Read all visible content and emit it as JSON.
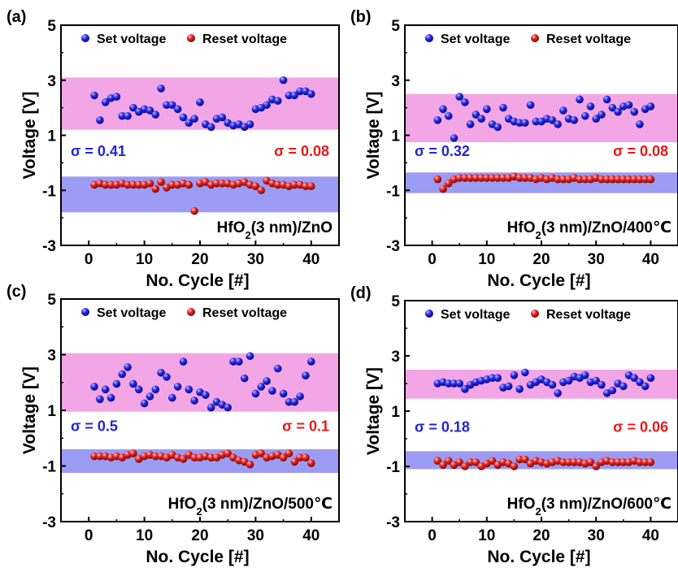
{
  "colors": {
    "set": "#1f1fe0",
    "reset": "#e01f1f",
    "set_band": "#f3a6e6",
    "reset_band": "#9c9cf4",
    "set_sigma_text": "#2424d6",
    "reset_sigma_text": "#e61a1a"
  },
  "chart_data": [
    {
      "type": "scatter",
      "panel_label": "(a)",
      "xlabel": "No. Cycle [#]",
      "ylabel": "Voltage [V]",
      "xlim": [
        -5,
        45
      ],
      "ylim": [
        -3,
        5
      ],
      "xticks": [
        0,
        10,
        20,
        30,
        40
      ],
      "yticks": [
        -3,
        -1,
        1,
        3,
        5
      ],
      "legend": [
        "Set voltage",
        "Reset voltage"
      ],
      "sigma_set": "σ = 0.41",
      "sigma_reset": "σ = 0.08",
      "sample": {
        "pre": "HfO",
        "sub": "2",
        "post": "(3 nm)/ZnO"
      },
      "set_band": [
        1.2,
        3.1
      ],
      "reset_band": [
        -1.8,
        -0.5
      ],
      "series": [
        {
          "name": "Set voltage",
          "x": [
            1,
            2,
            3,
            4,
            5,
            6,
            7,
            8,
            9,
            10,
            11,
            12,
            13,
            14,
            15,
            16,
            17,
            18,
            19,
            20,
            21,
            22,
            23,
            24,
            25,
            26,
            27,
            28,
            29,
            30,
            31,
            32,
            33,
            34,
            35,
            36,
            37,
            38,
            39,
            40
          ],
          "y": [
            2.45,
            1.55,
            2.2,
            2.35,
            2.4,
            1.7,
            1.7,
            2.0,
            1.85,
            1.95,
            1.9,
            1.75,
            2.7,
            2.1,
            2.1,
            1.95,
            1.65,
            1.45,
            1.6,
            2.2,
            1.4,
            1.3,
            1.6,
            1.65,
            1.45,
            1.35,
            1.4,
            1.3,
            1.4,
            1.95,
            2.0,
            2.1,
            2.3,
            2.25,
            3.0,
            2.45,
            2.45,
            2.6,
            2.6,
            2.5
          ]
        },
        {
          "name": "Reset voltage",
          "x": [
            1,
            2,
            3,
            4,
            5,
            6,
            7,
            8,
            9,
            10,
            11,
            12,
            13,
            14,
            15,
            16,
            17,
            18,
            19,
            20,
            21,
            22,
            23,
            24,
            25,
            26,
            27,
            28,
            29,
            30,
            31,
            32,
            33,
            34,
            35,
            36,
            37,
            38,
            39,
            40
          ],
          "y": [
            -0.8,
            -0.75,
            -0.8,
            -0.8,
            -0.8,
            -0.75,
            -0.8,
            -0.8,
            -0.8,
            -0.8,
            -0.75,
            -0.95,
            -0.7,
            -0.9,
            -0.8,
            -0.8,
            -0.75,
            -0.8,
            -1.75,
            -0.75,
            -0.7,
            -0.8,
            -0.75,
            -0.75,
            -0.75,
            -0.8,
            -0.75,
            -0.7,
            -0.8,
            -0.85,
            -1.0,
            -0.65,
            -0.75,
            -0.8,
            -0.8,
            -0.85,
            -0.8,
            -0.8,
            -0.85,
            -0.85
          ]
        }
      ]
    },
    {
      "type": "scatter",
      "panel_label": "(b)",
      "xlabel": "No. Cycle [#]",
      "ylabel": "Voltage [V]",
      "xlim": [
        -5,
        45
      ],
      "ylim": [
        -3,
        5
      ],
      "xticks": [
        0,
        10,
        20,
        30,
        40
      ],
      "yticks": [
        -3,
        -1,
        1,
        3,
        5
      ],
      "legend": [
        "Set voltage",
        "Reset voltage"
      ],
      "sigma_set": "σ = 0.32",
      "sigma_reset": "σ = 0.08",
      "sample": {
        "pre": "HfO",
        "sub": "2",
        "post": "(3 nm)/ZnO/400℃"
      },
      "set_band": [
        0.75,
        2.5
      ],
      "reset_band": [
        -1.1,
        -0.35
      ],
      "series": [
        {
          "name": "Set voltage",
          "x": [
            1,
            2,
            3,
            4,
            5,
            6,
            7,
            8,
            9,
            10,
            11,
            12,
            13,
            14,
            15,
            16,
            17,
            18,
            19,
            20,
            21,
            22,
            23,
            24,
            25,
            26,
            27,
            28,
            29,
            30,
            31,
            32,
            33,
            34,
            35,
            36,
            37,
            38,
            39,
            40
          ],
          "y": [
            1.55,
            1.95,
            1.7,
            0.9,
            2.4,
            2.2,
            1.4,
            1.75,
            1.6,
            1.95,
            1.4,
            1.3,
            2.0,
            1.6,
            1.5,
            1.45,
            1.45,
            2.1,
            1.5,
            1.5,
            1.6,
            1.55,
            1.4,
            1.9,
            1.6,
            1.55,
            2.3,
            1.7,
            2.05,
            1.6,
            1.75,
            2.3,
            2.0,
            1.85,
            2.05,
            2.1,
            1.85,
            1.4,
            1.95,
            2.05
          ]
        },
        {
          "name": "Reset voltage",
          "x": [
            1,
            2,
            3,
            4,
            5,
            6,
            7,
            8,
            9,
            10,
            11,
            12,
            13,
            14,
            15,
            16,
            17,
            18,
            19,
            20,
            21,
            22,
            23,
            24,
            25,
            26,
            27,
            28,
            29,
            30,
            31,
            32,
            33,
            34,
            35,
            36,
            37,
            38,
            39,
            40
          ],
          "y": [
            -0.6,
            -0.95,
            -0.75,
            -0.6,
            -0.55,
            -0.55,
            -0.55,
            -0.55,
            -0.55,
            -0.55,
            -0.55,
            -0.55,
            -0.55,
            -0.55,
            -0.5,
            -0.55,
            -0.55,
            -0.55,
            -0.6,
            -0.55,
            -0.6,
            -0.55,
            -0.6,
            -0.6,
            -0.6,
            -0.55,
            -0.6,
            -0.6,
            -0.6,
            -0.55,
            -0.6,
            -0.6,
            -0.6,
            -0.6,
            -0.6,
            -0.6,
            -0.6,
            -0.6,
            -0.6,
            -0.6
          ]
        }
      ]
    },
    {
      "type": "scatter",
      "panel_label": "(c)",
      "xlabel": "No. Cycle [#]",
      "ylabel": "Voltage [V]",
      "xlim": [
        -5,
        45
      ],
      "ylim": [
        -3,
        5
      ],
      "xticks": [
        0,
        10,
        20,
        30,
        40
      ],
      "yticks": [
        -3,
        -1,
        1,
        3,
        5
      ],
      "legend": [
        "Set voltage",
        "Reset voltage"
      ],
      "sigma_set": "σ = 0.5",
      "sigma_reset": "σ = 0.1",
      "sample": {
        "pre": "HfO",
        "sub": "2",
        "post": "(3 nm)/ZnO/500℃"
      },
      "set_band": [
        0.95,
        3.05
      ],
      "reset_band": [
        -1.25,
        -0.4
      ],
      "series": [
        {
          "name": "Set voltage",
          "x": [
            1,
            2,
            3,
            4,
            5,
            6,
            7,
            8,
            9,
            10,
            11,
            12,
            13,
            14,
            15,
            16,
            17,
            18,
            19,
            20,
            21,
            22,
            23,
            24,
            25,
            26,
            27,
            28,
            29,
            30,
            31,
            32,
            33,
            34,
            35,
            36,
            37,
            38,
            39,
            40
          ],
          "y": [
            1.85,
            1.4,
            1.75,
            1.45,
            1.95,
            2.3,
            2.55,
            1.95,
            1.75,
            1.25,
            1.5,
            1.75,
            2.35,
            2.2,
            1.45,
            1.85,
            2.75,
            1.75,
            1.35,
            1.65,
            1.55,
            1.1,
            1.3,
            1.2,
            1.1,
            2.75,
            2.75,
            2.15,
            2.95,
            1.6,
            1.85,
            2.05,
            1.7,
            2.5,
            1.6,
            1.3,
            1.3,
            1.5,
            2.25,
            2.75
          ]
        },
        {
          "name": "Reset voltage",
          "x": [
            1,
            2,
            3,
            4,
            5,
            6,
            7,
            8,
            9,
            10,
            11,
            12,
            13,
            14,
            15,
            16,
            17,
            18,
            19,
            20,
            21,
            22,
            23,
            24,
            25,
            26,
            27,
            28,
            29,
            30,
            31,
            32,
            33,
            34,
            35,
            36,
            37,
            38,
            39,
            40
          ],
          "y": [
            -0.65,
            -0.65,
            -0.65,
            -0.7,
            -0.65,
            -0.7,
            -0.6,
            -0.55,
            -0.75,
            -0.65,
            -0.6,
            -0.65,
            -0.65,
            -0.7,
            -0.6,
            -0.7,
            -0.75,
            -0.6,
            -0.7,
            -0.7,
            -0.65,
            -0.7,
            -0.7,
            -0.6,
            -0.55,
            -0.7,
            -0.8,
            -0.85,
            -0.95,
            -0.6,
            -0.55,
            -0.7,
            -0.65,
            -0.6,
            -0.7,
            -0.55,
            -0.85,
            -0.7,
            -0.7,
            -0.9
          ]
        }
      ]
    },
    {
      "type": "scatter",
      "panel_label": "(d)",
      "xlabel": "No. Cycle [#]",
      "ylabel": "Voltage [V]",
      "xlim": [
        -5,
        45
      ],
      "ylim": [
        -3,
        5
      ],
      "xticks": [
        0,
        10,
        20,
        30,
        40
      ],
      "yticks": [
        -3,
        -1,
        1,
        3,
        5
      ],
      "legend": [
        "Set voltage",
        "Reset voltage"
      ],
      "sigma_set": "σ = 0.18",
      "sigma_reset": "σ = 0.06",
      "sample": {
        "pre": "HfO",
        "sub": "2",
        "post": "(3 nm)/ZnO/600℃"
      },
      "set_band": [
        1.45,
        2.5
      ],
      "reset_band": [
        -1.1,
        -0.45
      ],
      "series": [
        {
          "name": "Set voltage",
          "x": [
            1,
            2,
            3,
            4,
            5,
            6,
            7,
            8,
            9,
            10,
            11,
            12,
            13,
            14,
            15,
            16,
            17,
            18,
            19,
            20,
            21,
            22,
            23,
            24,
            25,
            26,
            27,
            28,
            29,
            30,
            31,
            32,
            33,
            34,
            35,
            36,
            37,
            38,
            39,
            40
          ],
          "y": [
            2.0,
            2.05,
            2.0,
            2.0,
            2.0,
            1.8,
            1.95,
            2.05,
            2.1,
            2.15,
            2.2,
            2.2,
            1.85,
            1.9,
            2.3,
            1.8,
            2.4,
            1.95,
            2.05,
            2.15,
            2.05,
            1.95,
            1.65,
            2.05,
            2.1,
            2.25,
            2.2,
            2.3,
            2.05,
            2.1,
            1.95,
            1.65,
            1.75,
            2.0,
            1.9,
            2.3,
            2.2,
            2.05,
            1.9,
            2.2
          ]
        },
        {
          "name": "Reset voltage",
          "x": [
            1,
            2,
            3,
            4,
            5,
            6,
            7,
            8,
            9,
            10,
            11,
            12,
            13,
            14,
            15,
            16,
            17,
            18,
            19,
            20,
            21,
            22,
            23,
            24,
            25,
            26,
            27,
            28,
            29,
            30,
            31,
            32,
            33,
            34,
            35,
            36,
            37,
            38,
            39,
            40
          ],
          "y": [
            -0.8,
            -0.95,
            -0.8,
            -0.95,
            -0.85,
            -1.0,
            -0.85,
            -0.85,
            -1.0,
            -0.9,
            -0.8,
            -0.95,
            -0.85,
            -0.9,
            -1.0,
            -0.75,
            -0.75,
            -0.9,
            -0.8,
            -0.85,
            -0.9,
            -0.85,
            -0.8,
            -0.85,
            -0.85,
            -0.85,
            -0.85,
            -0.9,
            -0.85,
            -1.0,
            -0.85,
            -0.8,
            -0.85,
            -0.85,
            -0.85,
            -0.85,
            -0.8,
            -0.85,
            -0.85,
            -0.85
          ]
        }
      ]
    }
  ]
}
